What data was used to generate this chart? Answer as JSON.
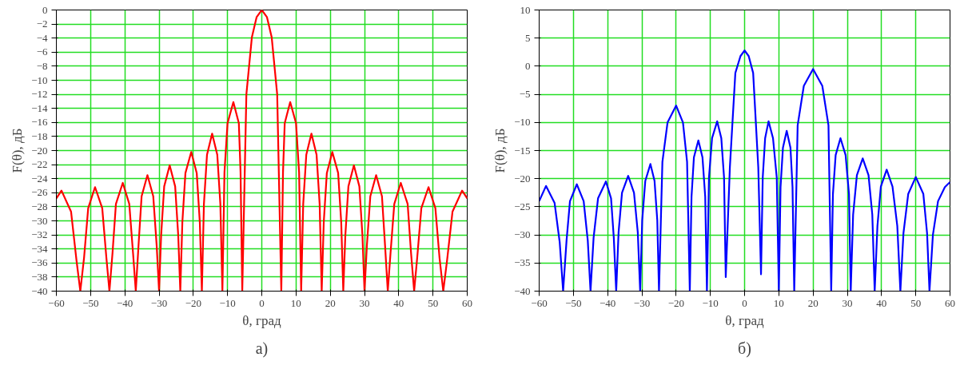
{
  "chart_data": [
    {
      "type": "line",
      "xlabel": "θ, град",
      "ylabel": "F(θ), дБ",
      "annotations": [
        "а)"
      ],
      "grid": true,
      "marker": "none",
      "line_style": "solid",
      "xlim": [
        -60,
        60
      ],
      "ylim": [
        -40,
        0
      ],
      "xticks": [
        -60,
        -50,
        -40,
        -30,
        -20,
        -10,
        0,
        10,
        20,
        30,
        40,
        50,
        60
      ],
      "yticks": [
        -40,
        -38,
        -36,
        -34,
        -32,
        -30,
        -28,
        -26,
        -24,
        -22,
        -20,
        -18,
        -16,
        -14,
        -12,
        -10,
        -8,
        -6,
        -4,
        -2,
        0
      ],
      "x": [
        -60,
        -58.5,
        -55.7,
        -54.1,
        -53,
        -51.9,
        -50.7,
        -48.7,
        -46.6,
        -45.4,
        -44.5,
        -43.6,
        -42.6,
        -40.6,
        -38.7,
        -37.6,
        -36.8,
        -36,
        -35.1,
        -33.4,
        -31.7,
        -30.7,
        -30,
        -29.4,
        -28.5,
        -26.9,
        -25.3,
        -24.4,
        -23.8,
        -23.2,
        -22.3,
        -20.6,
        -19,
        -18.1,
        -17.5,
        -16.9,
        -16,
        -14.5,
        -13,
        -12.1,
        -11.5,
        -10.9,
        -10,
        -8.3,
        -6.7,
        -6.2,
        -5.7,
        -4.5,
        -2.9,
        -1.5,
        0,
        1.5,
        2.9,
        4.5,
        5.7,
        6.2,
        6.7,
        8.3,
        10,
        10.9,
        11.5,
        12.1,
        13,
        14.5,
        16,
        16.9,
        17.5,
        18.1,
        19,
        20.6,
        22.3,
        23.2,
        23.8,
        24.4,
        25.3,
        26.9,
        28.5,
        29.4,
        30,
        30.7,
        31.7,
        33.4,
        35.1,
        36,
        36.8,
        37.6,
        38.7,
        40.6,
        42.6,
        43.6,
        44.5,
        45.4,
        46.6,
        48.7,
        50.7,
        51.9,
        53,
        54.1,
        55.7,
        58.5,
        60
      ],
      "series": [
        {
          "color": "#ff0000",
          "values": [
            -26.8,
            -25.7,
            -28.7,
            -35.7,
            -40,
            -35.2,
            -28.2,
            -25.2,
            -28.2,
            -35.2,
            -40,
            -34.6,
            -27.6,
            -24.6,
            -27.6,
            -34.6,
            -40,
            -33.5,
            -26.5,
            -23.5,
            -26.5,
            -33.5,
            -40,
            -32.1,
            -25.1,
            -22.1,
            -25.1,
            -32.1,
            -40,
            -30.2,
            -23.2,
            -20.2,
            -23.2,
            -30.2,
            -40,
            -27.6,
            -20.6,
            -17.6,
            -20.6,
            -27.6,
            -40,
            -23.1,
            -16.1,
            -13.1,
            -16.1,
            -23.1,
            -40,
            -12,
            -3.9,
            -1,
            0,
            -1,
            -3.9,
            -12,
            -40,
            -23.1,
            -16.1,
            -13.1,
            -16.1,
            -23.1,
            -40,
            -27.6,
            -20.6,
            -17.6,
            -20.6,
            -27.6,
            -40,
            -30.2,
            -23.2,
            -20.2,
            -23.2,
            -30.2,
            -40,
            -32.1,
            -25.1,
            -22.1,
            -25.1,
            -32.1,
            -40,
            -33.5,
            -26.5,
            -23.5,
            -26.5,
            -33.5,
            -40,
            -34.6,
            -27.6,
            -24.6,
            -27.6,
            -34.6,
            -40,
            -35.2,
            -28.2,
            -25.2,
            -28.2,
            -35.2,
            -40,
            -35.7,
            -28.7,
            -25.7,
            -26.8
          ]
        }
      ]
    },
    {
      "type": "line",
      "xlabel": "θ, град",
      "ylabel": "F(θ), дБ",
      "annotations": [
        "б)"
      ],
      "grid": true,
      "marker": "none",
      "line_style": "solid",
      "xlim": [
        -60,
        60
      ],
      "ylim": [
        -40,
        10
      ],
      "xticks": [
        -60,
        -50,
        -40,
        -30,
        -20,
        -10,
        0,
        10,
        20,
        30,
        40,
        50,
        60
      ],
      "yticks": [
        -40,
        -35,
        -30,
        -25,
        -20,
        -15,
        -10,
        -5,
        0,
        5,
        10
      ],
      "x": [
        -60,
        -58,
        -55.5,
        -54,
        -53,
        -52,
        -51,
        -49,
        -47,
        -45.8,
        -45,
        -44.1,
        -42.8,
        -40.5,
        -39,
        -38.2,
        -37.5,
        -36.8,
        -35.8,
        -34,
        -32.3,
        -31.2,
        -30.5,
        -29.9,
        -29,
        -27.5,
        -26.3,
        -25.5,
        -25,
        -24,
        -22.5,
        -20,
        -18,
        -16.8,
        -16,
        -15.5,
        -14.8,
        -13.5,
        -12.3,
        -11.5,
        -11,
        -10.4,
        -9.5,
        -8,
        -6.8,
        -6,
        -5.5,
        -4.3,
        -2.7,
        -1.2,
        0,
        1.2,
        2.5,
        4,
        4.8,
        5.3,
        6,
        7,
        8.3,
        9.4,
        10,
        10.5,
        11.2,
        12.3,
        13.4,
        14,
        14.5,
        15.5,
        17.3,
        20,
        22.7,
        24.5,
        25.3,
        25.8,
        26.6,
        28,
        29.5,
        30.5,
        31,
        31.7,
        32.8,
        34.5,
        36.2,
        37.3,
        38,
        38.8,
        39.8,
        41.5,
        43.2,
        44.6,
        45.5,
        46.4,
        47.8,
        50,
        52.2,
        53.3,
        54,
        55,
        56.5,
        58.5,
        60
      ],
      "series": [
        {
          "color": "#0000ff",
          "values": [
            -24,
            -21.3,
            -24.3,
            -31.3,
            -40,
            -31,
            -24,
            -21,
            -24,
            -31,
            -40,
            -30.5,
            -23.5,
            -20.5,
            -23.5,
            -30.5,
            -40,
            -29.5,
            -22.5,
            -19.5,
            -22.5,
            -29.5,
            -40,
            -27.4,
            -20.4,
            -17.4,
            -20.4,
            -27.4,
            -40,
            -17,
            -10,
            -7,
            -10,
            -17,
            -40,
            -23.2,
            -16.2,
            -13.2,
            -16.2,
            -23.2,
            -40,
            -19.8,
            -12.8,
            -9.8,
            -12.8,
            -19.8,
            -37.5,
            -18,
            -1.2,
            1.8,
            2.8,
            1.8,
            -1.2,
            -18,
            -37,
            -19.8,
            -12.8,
            -9.8,
            -12.8,
            -19.8,
            -40,
            -21.5,
            -14.5,
            -11.5,
            -14.5,
            -21.5,
            -40,
            -10.5,
            -3.5,
            -0.5,
            -3.5,
            -10.5,
            -40,
            -22.8,
            -15.8,
            -12.8,
            -15.8,
            -22.8,
            -40,
            -26.4,
            -19.4,
            -16.4,
            -19.4,
            -26.4,
            -40,
            -28.4,
            -21.4,
            -18.4,
            -21.4,
            -28.4,
            -40,
            -29.7,
            -22.7,
            -19.7,
            -22.7,
            -29.7,
            -40,
            -30,
            -24,
            -21.5,
            -20.6
          ]
        }
      ]
    }
  ]
}
